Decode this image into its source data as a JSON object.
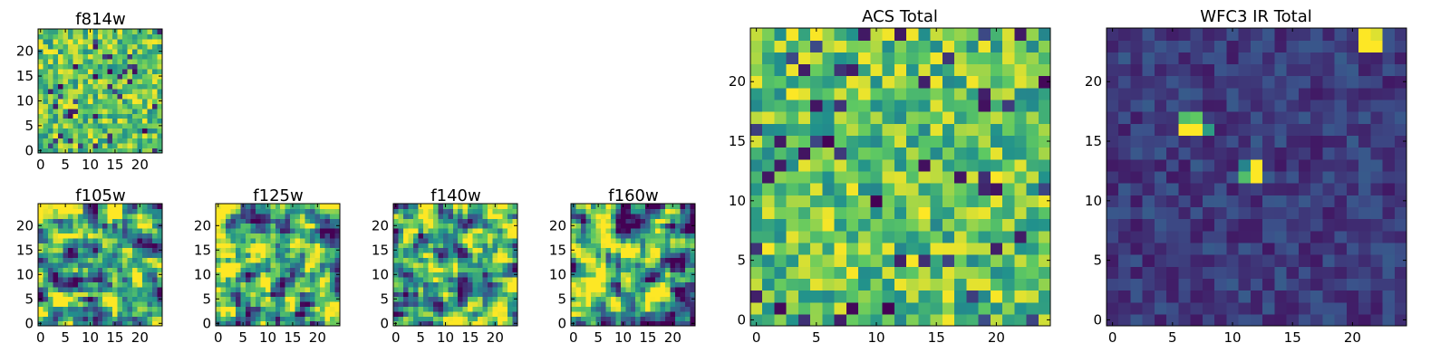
{
  "colormap": [
    "#440154",
    "#3b528b",
    "#21918c",
    "#5ec962",
    "#fde725"
  ],
  "chart_data": [
    {
      "type": "heatmap",
      "id": "f814w",
      "title": "f814w",
      "grid_size": 25,
      "seed": 11,
      "mode": "noise",
      "xlim": [
        -0.5,
        24.5
      ],
      "ylim": [
        -0.5,
        24.5
      ],
      "xticks": [
        0,
        5,
        10,
        15,
        20
      ],
      "yticks": [
        0,
        5,
        10,
        15,
        20
      ],
      "xtick_labels": [
        "0",
        "5",
        "10",
        "15",
        "20"
      ],
      "ytick_labels": [
        "0",
        "5",
        "10",
        "15",
        "20"
      ]
    },
    {
      "type": "heatmap",
      "id": "f105w",
      "title": "f105w",
      "grid_size": 25,
      "seed": 23,
      "mode": "smooth",
      "xlim": [
        -0.5,
        24.5
      ],
      "ylim": [
        -0.5,
        24.5
      ],
      "xticks": [
        0,
        5,
        10,
        15,
        20
      ],
      "yticks": [
        0,
        5,
        10,
        15,
        20
      ],
      "xtick_labels": [
        "0",
        "5",
        "10",
        "15",
        "20"
      ],
      "ytick_labels": [
        "0",
        "5",
        "10",
        "15",
        "20"
      ]
    },
    {
      "type": "heatmap",
      "id": "f125w",
      "title": "f125w",
      "grid_size": 25,
      "seed": 37,
      "mode": "smooth",
      "xlim": [
        -0.5,
        24.5
      ],
      "ylim": [
        -0.5,
        24.5
      ],
      "xticks": [
        0,
        5,
        10,
        15,
        20
      ],
      "yticks": [
        0,
        5,
        10,
        15,
        20
      ],
      "xtick_labels": [
        "0",
        "5",
        "10",
        "15",
        "20"
      ],
      "ytick_labels": [
        "0",
        "5",
        "10",
        "15",
        "20"
      ]
    },
    {
      "type": "heatmap",
      "id": "f140w",
      "title": "f140w",
      "grid_size": 25,
      "seed": 41,
      "mode": "smooth",
      "xlim": [
        -0.5,
        24.5
      ],
      "ylim": [
        -0.5,
        24.5
      ],
      "xticks": [
        0,
        5,
        10,
        15,
        20
      ],
      "yticks": [
        0,
        5,
        10,
        15,
        20
      ],
      "xtick_labels": [
        "0",
        "5",
        "10",
        "15",
        "20"
      ],
      "ytick_labels": [
        "0",
        "5",
        "10",
        "15",
        "20"
      ]
    },
    {
      "type": "heatmap",
      "id": "f160w",
      "title": "f160w",
      "grid_size": 25,
      "seed": 53,
      "mode": "smooth",
      "xlim": [
        -0.5,
        24.5
      ],
      "ylim": [
        -0.5,
        24.5
      ],
      "xticks": [
        0,
        5,
        10,
        15,
        20
      ],
      "yticks": [
        0,
        5,
        10,
        15,
        20
      ],
      "xtick_labels": [
        "0",
        "5",
        "10",
        "15",
        "20"
      ],
      "ytick_labels": [
        "0",
        "5",
        "10",
        "15",
        "20"
      ]
    },
    {
      "type": "heatmap",
      "id": "acs-total",
      "title": "ACS Total",
      "grid_size": 25,
      "seed": 67,
      "mode": "noise",
      "xlim": [
        -0.5,
        24.5
      ],
      "ylim": [
        -0.5,
        24.5
      ],
      "xticks": [
        0,
        5,
        10,
        15,
        20
      ],
      "yticks": [
        0,
        5,
        10,
        15,
        20
      ],
      "xtick_labels": [
        "0",
        "5",
        "10",
        "15",
        "20"
      ],
      "ytick_labels": [
        "0",
        "5",
        "10",
        "15",
        "20"
      ]
    },
    {
      "type": "heatmap",
      "id": "wfc3-ir-total",
      "title": "WFC3 IR Total",
      "grid_size": 25,
      "seed": 79,
      "mode": "dark",
      "xlim": [
        -0.5,
        24.5
      ],
      "ylim": [
        -0.5,
        24.5
      ],
      "xticks": [
        0,
        5,
        10,
        15,
        20
      ],
      "yticks": [
        0,
        5,
        10,
        15,
        20
      ],
      "xtick_labels": [
        "0",
        "5",
        "10",
        "15",
        "20"
      ],
      "ytick_labels": [
        "0",
        "5",
        "10",
        "15",
        "20"
      ],
      "bright_sources": [
        {
          "x": 21,
          "y": 24,
          "value": 1.0
        },
        {
          "x": 22,
          "y": 24,
          "value": 0.95
        },
        {
          "x": 21,
          "y": 23,
          "value": 1.0
        },
        {
          "x": 22,
          "y": 23,
          "value": 1.0
        },
        {
          "x": 6,
          "y": 17,
          "value": 0.7
        },
        {
          "x": 7,
          "y": 17,
          "value": 0.75
        },
        {
          "x": 6,
          "y": 16,
          "value": 1.0
        },
        {
          "x": 7,
          "y": 16,
          "value": 1.0
        },
        {
          "x": 8,
          "y": 16,
          "value": 0.55
        },
        {
          "x": 11,
          "y": 13,
          "value": 0.45
        },
        {
          "x": 12,
          "y": 13,
          "value": 1.0
        },
        {
          "x": 11,
          "y": 12,
          "value": 0.7
        },
        {
          "x": 12,
          "y": 12,
          "value": 1.0
        }
      ]
    }
  ]
}
